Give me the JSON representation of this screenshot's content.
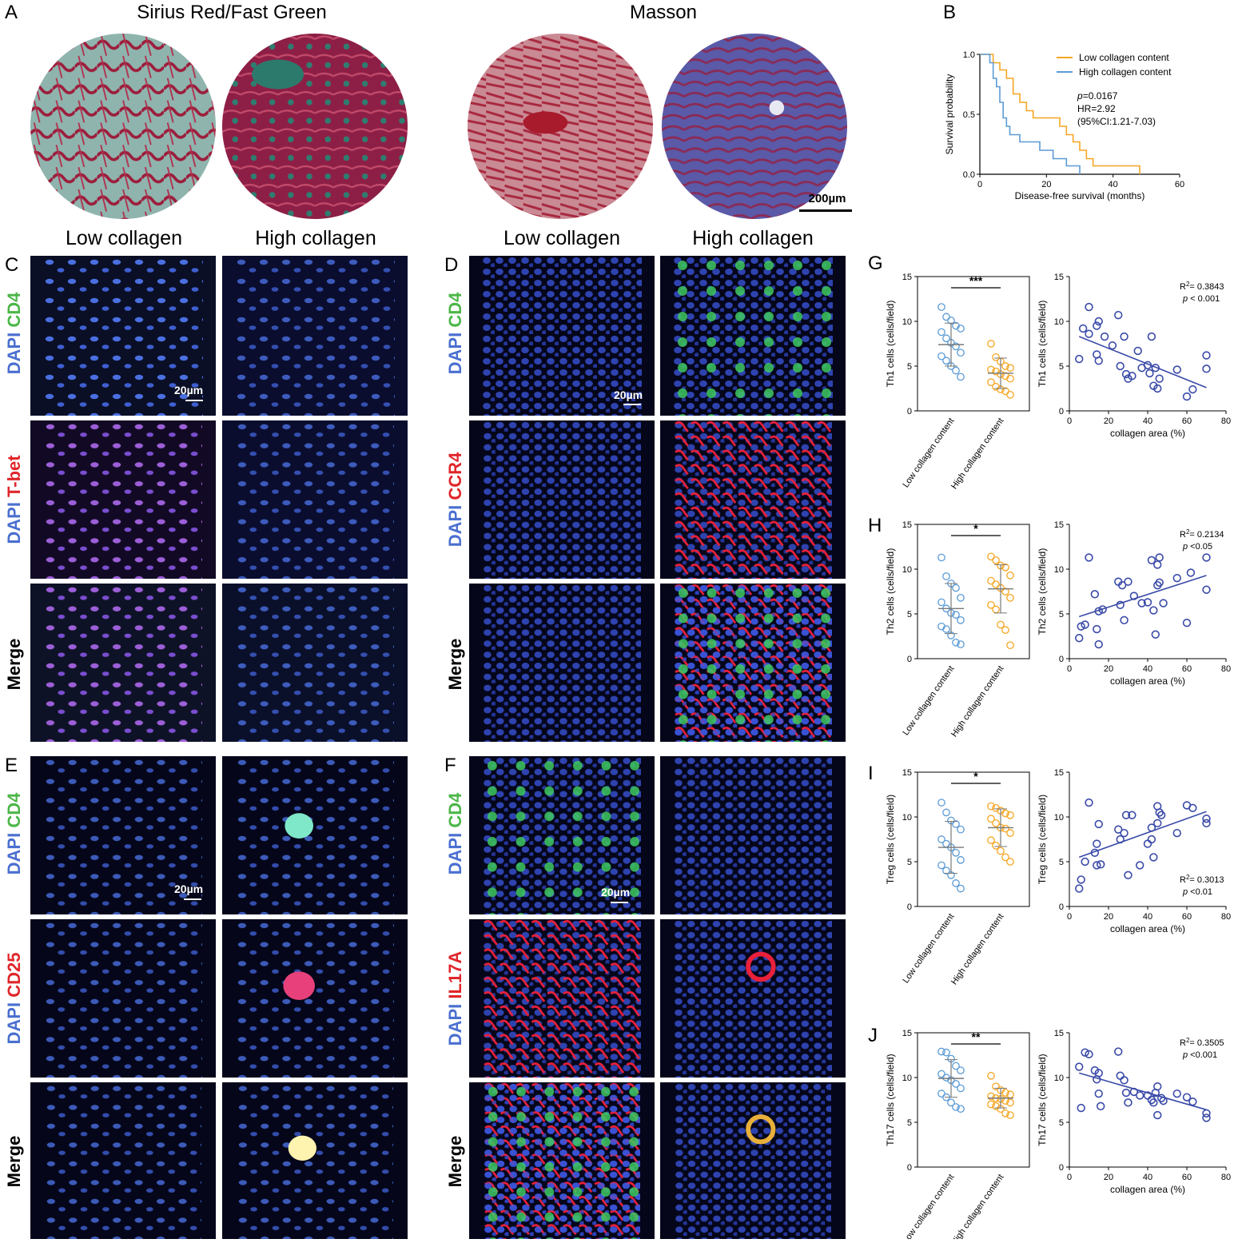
{
  "panels": {
    "A": {
      "letter": "A",
      "title_left": "Sirius Red/Fast Green",
      "title_right": "Masson",
      "scale": "200µm"
    },
    "B": {
      "letter": "B"
    },
    "C": {
      "letter": "C",
      "col_low": "Low collagen",
      "col_high": "High collagen",
      "scale": "20µm",
      "rows": [
        {
          "dapi": "DAPI",
          "marker": "CD4"
        },
        {
          "dapi": "DAPI",
          "marker": "T-bet"
        },
        {
          "merge": "Merge"
        }
      ]
    },
    "D": {
      "letter": "D",
      "col_low": "Low collagen",
      "col_high": "High collagen",
      "scale": "20µm",
      "rows": [
        {
          "dapi": "DAPI",
          "marker": "CD4"
        },
        {
          "dapi": "DAPI",
          "marker": "CCR4"
        },
        {
          "merge": "Merge"
        }
      ]
    },
    "E": {
      "letter": "E",
      "scale": "20µm",
      "rows": [
        {
          "dapi": "DAPI",
          "marker": "CD4"
        },
        {
          "dapi": "DAPI",
          "marker": "CD25"
        },
        {
          "merge": "Merge"
        }
      ]
    },
    "F": {
      "letter": "F",
      "scale": "20µm",
      "rows": [
        {
          "dapi": "DAPI",
          "marker": "CD4"
        },
        {
          "dapi": "DAPI",
          "marker": "IL17A"
        },
        {
          "merge": "Merge"
        }
      ]
    },
    "G": {
      "letter": "G"
    },
    "H": {
      "letter": "H"
    },
    "I": {
      "letter": "I"
    },
    "J": {
      "letter": "J"
    }
  },
  "colors": {
    "low": "#f5a623",
    "high": "#5b9bd5",
    "scatter": "#3a4aa8"
  },
  "chart_data": [
    {
      "id": "B",
      "type": "line",
      "xlabel": "Disease-free survival (months)",
      "ylabel": "Survival probability",
      "xlim": [
        0,
        60
      ],
      "ylim": [
        0,
        1.0
      ],
      "xticks": [
        0,
        20,
        40,
        60
      ],
      "yticks": [
        0.0,
        0.5,
        1.0
      ],
      "legend": [
        "Low collagen content",
        "High collagen content"
      ],
      "annotations": [
        "p=0.0167",
        "HR=2.92",
        "(95%CI:1.21-7.03)"
      ],
      "series": [
        {
          "name": "Low collagen content",
          "color": "#f5a623",
          "steps": [
            [
              0,
              1.0
            ],
            [
              4,
              0.93
            ],
            [
              6,
              0.87
            ],
            [
              8,
              0.8
            ],
            [
              10,
              0.67
            ],
            [
              12,
              0.6
            ],
            [
              14,
              0.53
            ],
            [
              16,
              0.47
            ],
            [
              24,
              0.4
            ],
            [
              26,
              0.33
            ],
            [
              28,
              0.27
            ],
            [
              30,
              0.2
            ],
            [
              32,
              0.13
            ],
            [
              34,
              0.07
            ],
            [
              48,
              0.0
            ]
          ]
        },
        {
          "name": "High collagen content",
          "color": "#5b9bd5",
          "steps": [
            [
              0,
              1.0
            ],
            [
              3,
              0.93
            ],
            [
              4,
              0.8
            ],
            [
              5,
              0.73
            ],
            [
              6,
              0.6
            ],
            [
              7,
              0.47
            ],
            [
              8,
              0.4
            ],
            [
              9,
              0.33
            ],
            [
              12,
              0.27
            ],
            [
              18,
              0.2
            ],
            [
              22,
              0.13
            ],
            [
              26,
              0.07
            ],
            [
              30,
              0.0
            ]
          ]
        }
      ]
    },
    {
      "id": "G",
      "type": "scatter",
      "ylabel": "Th1 cells (cells/field)",
      "ylim": [
        0,
        15
      ],
      "yticks": [
        0,
        5,
        10,
        15
      ],
      "categories": [
        "Low collagen content",
        "High collagen content"
      ],
      "significance": "***",
      "groups": [
        {
          "name": "Low collagen content",
          "mean": 7.4,
          "sd": 2.4,
          "values": [
            11.6,
            10.5,
            10.1,
            9.5,
            9.2,
            8.8,
            8.1,
            7.6,
            7.2,
            6.5,
            6.1,
            5.6,
            5.0,
            4.5,
            3.8
          ]
        },
        {
          "name": "High collagen content",
          "mean": 4.2,
          "sd": 1.7,
          "values": [
            7.5,
            6.0,
            5.5,
            5.0,
            4.8,
            4.6,
            4.4,
            4.1,
            3.9,
            3.6,
            3.2,
            2.7,
            2.4,
            2.2,
            1.8
          ]
        }
      ],
      "regression": {
        "xlabel": "collagen area (%)",
        "ylabel": "Th1 cells (cells/field)",
        "xlim": [
          0,
          80
        ],
        "xticks": [
          0,
          20,
          40,
          60,
          80
        ],
        "r2": "0.3843",
        "p": "< 0.001",
        "r2_label": "R",
        "p_label": "p",
        "points": [
          [
            5,
            5.8
          ],
          [
            7,
            9.2
          ],
          [
            10,
            11.6
          ],
          [
            10,
            8.6
          ],
          [
            14,
            6.3
          ],
          [
            14,
            9.5
          ],
          [
            15,
            5.6
          ],
          [
            15,
            10
          ],
          [
            18,
            8.3
          ],
          [
            22,
            7.3
          ],
          [
            25,
            10.7
          ],
          [
            26,
            5.0
          ],
          [
            28,
            8.3
          ],
          [
            29,
            4.1
          ],
          [
            30,
            3.6
          ],
          [
            32,
            3.9
          ],
          [
            35,
            6.7
          ],
          [
            37,
            4.8
          ],
          [
            40,
            5.1
          ],
          [
            41,
            4.2
          ],
          [
            42,
            8.3
          ],
          [
            43,
            2.8
          ],
          [
            44,
            4.8
          ],
          [
            45,
            2.5
          ],
          [
            46,
            3.6
          ],
          [
            55,
            4.6
          ],
          [
            60,
            1.6
          ],
          [
            63,
            2.4
          ],
          [
            70,
            6.2
          ],
          [
            70,
            4.7
          ]
        ],
        "line": [
          [
            5,
            8.3
          ],
          [
            70,
            2.6
          ]
        ]
      }
    },
    {
      "id": "H",
      "type": "scatter",
      "ylabel": "Th2 cells (cells/field)",
      "ylim": [
        0,
        15
      ],
      "yticks": [
        0,
        5,
        10,
        15
      ],
      "categories": [
        "Low collagen content",
        "High collagen content"
      ],
      "significance": "*",
      "groups": [
        {
          "name": "Low collagen content",
          "mean": 5.6,
          "sd": 2.8,
          "values": [
            11.3,
            9.2,
            8.4,
            7.9,
            6.8,
            6.3,
            5.6,
            5.1,
            4.9,
            4.3,
            3.6,
            3.3,
            2.6,
            1.8,
            1.6
          ]
        },
        {
          "name": "High collagen content",
          "mean": 7.8,
          "sd": 2.7,
          "values": [
            11.4,
            11.0,
            10.4,
            10.2,
            9.3,
            8.7,
            8.3,
            7.9,
            7.5,
            6.8,
            6.0,
            5.5,
            3.8,
            3.2,
            1.5
          ]
        }
      ],
      "regression": {
        "xlabel": "collagen area (%)",
        "ylabel": "Th2 cells (cells/field)",
        "xlim": [
          0,
          80
        ],
        "xticks": [
          0,
          20,
          40,
          60,
          80
        ],
        "r2": "0.2134",
        "p": "<0.05",
        "r2_label": "R",
        "p_label": "p",
        "points": [
          [
            5,
            2.3
          ],
          [
            6,
            3.6
          ],
          [
            8,
            3.8
          ],
          [
            10,
            11.3
          ],
          [
            13,
            7.2
          ],
          [
            14,
            3.3
          ],
          [
            15,
            5.3
          ],
          [
            15,
            1.6
          ],
          [
            17,
            5.5
          ],
          [
            25,
            8.6
          ],
          [
            26,
            6.0
          ],
          [
            27,
            8.2
          ],
          [
            28,
            4.3
          ],
          [
            30,
            8.6
          ],
          [
            33,
            7.0
          ],
          [
            37,
            6.2
          ],
          [
            40,
            6.3
          ],
          [
            42,
            11.0
          ],
          [
            43,
            5.4
          ],
          [
            44,
            2.7
          ],
          [
            45,
            8.2
          ],
          [
            45,
            10.5
          ],
          [
            46,
            11.3
          ],
          [
            46,
            8.5
          ],
          [
            48,
            6.2
          ],
          [
            55,
            9.0
          ],
          [
            60,
            4.0
          ],
          [
            62,
            9.6
          ],
          [
            70,
            11.3
          ],
          [
            70,
            7.7
          ]
        ],
        "line": [
          [
            5,
            4.7
          ],
          [
            70,
            9.3
          ]
        ]
      }
    },
    {
      "id": "I",
      "type": "scatter",
      "ylabel": "Treg cells (cells/field)",
      "ylim": [
        0,
        15
      ],
      "yticks": [
        0,
        5,
        10,
        15
      ],
      "categories": [
        "Low collagen content",
        "High collagen content"
      ],
      "significance": "*",
      "groups": [
        {
          "name": "Low collagen content",
          "mean": 6.6,
          "sd": 2.9,
          "values": [
            11.6,
            10.5,
            9.6,
            9.2,
            8.6,
            7.5,
            7.0,
            6.6,
            6.0,
            5.2,
            4.6,
            4.0,
            3.5,
            2.6,
            2.0
          ]
        },
        {
          "name": "High collagen content",
          "mean": 8.8,
          "sd": 2.1,
          "values": [
            11.2,
            11.0,
            10.7,
            10.4,
            10.2,
            9.8,
            9.3,
            8.8,
            8.7,
            8.2,
            7.4,
            6.8,
            6.2,
            5.5,
            5.0
          ]
        }
      ],
      "regression": {
        "xlabel": "collagen area (%)",
        "ylabel": "Treg cells (cells/field)",
        "xlim": [
          0,
          80
        ],
        "xticks": [
          0,
          20,
          40,
          60,
          80
        ],
        "r2": "0.3013",
        "p": "<0.01",
        "r2_label": "R",
        "p_label": "p",
        "points": [
          [
            5,
            2.0
          ],
          [
            6,
            3.0
          ],
          [
            8,
            5.0
          ],
          [
            10,
            11.6
          ],
          [
            13,
            6.0
          ],
          [
            14,
            4.6
          ],
          [
            14,
            7.0
          ],
          [
            15,
            9.2
          ],
          [
            16,
            4.7
          ],
          [
            25,
            8.6
          ],
          [
            26,
            7.5
          ],
          [
            28,
            8.2
          ],
          [
            29,
            10.2
          ],
          [
            30,
            3.5
          ],
          [
            32,
            10.2
          ],
          [
            36,
            4.6
          ],
          [
            40,
            7.0
          ],
          [
            42,
            7.5
          ],
          [
            42,
            8.8
          ],
          [
            43,
            5.5
          ],
          [
            45,
            11.2
          ],
          [
            45,
            9.3
          ],
          [
            46,
            10.5
          ],
          [
            47,
            10.2
          ],
          [
            55,
            8.2
          ],
          [
            60,
            11.3
          ],
          [
            63,
            11.0
          ],
          [
            70,
            9.8
          ],
          [
            70,
            9.3
          ]
        ],
        "line": [
          [
            5,
            5.5
          ],
          [
            70,
            10.6
          ]
        ]
      }
    },
    {
      "id": "J",
      "type": "scatter",
      "ylabel": "Th17 cells (cells/field)",
      "ylim": [
        0,
        15
      ],
      "yticks": [
        0,
        5,
        10,
        15
      ],
      "categories": [
        "Low collagen content",
        "High collagen content"
      ],
      "significance": "**",
      "groups": [
        {
          "name": "Low collagen content",
          "mean": 9.9,
          "sd": 2.1,
          "values": [
            12.9,
            12.8,
            12.1,
            11.3,
            10.8,
            10.4,
            10.0,
            9.7,
            9.3,
            8.8,
            8.2,
            7.8,
            7.2,
            6.7,
            6.5
          ]
        },
        {
          "name": "High collagen content",
          "mean": 7.7,
          "sd": 1.1,
          "values": [
            10.2,
            9.0,
            8.6,
            8.3,
            8.1,
            7.9,
            7.7,
            7.6,
            7.4,
            7.2,
            7.0,
            6.8,
            6.5,
            6.0,
            5.8
          ]
        }
      ],
      "regression": {
        "xlabel": "collagen area (%)",
        "ylabel": "Th17 cells (cells/field)",
        "xlim": [
          0,
          80
        ],
        "xticks": [
          0,
          20,
          40,
          60,
          80
        ],
        "r2": "0.3505",
        "p": "<0.001",
        "r2_label": "R",
        "p_label": "p",
        "points": [
          [
            5,
            11.2
          ],
          [
            6,
            6.6
          ],
          [
            8,
            12.8
          ],
          [
            10,
            12.6
          ],
          [
            13,
            10.8
          ],
          [
            14,
            9.8
          ],
          [
            15,
            8.2
          ],
          [
            15,
            10.5
          ],
          [
            16,
            6.8
          ],
          [
            25,
            12.9
          ],
          [
            26,
            10.2
          ],
          [
            28,
            9.7
          ],
          [
            29,
            8.3
          ],
          [
            30,
            7.2
          ],
          [
            33,
            8.4
          ],
          [
            36,
            8.0
          ],
          [
            40,
            8.0
          ],
          [
            42,
            7.5
          ],
          [
            43,
            7.2
          ],
          [
            44,
            8.3
          ],
          [
            45,
            5.8
          ],
          [
            45,
            9.0
          ],
          [
            47,
            7.7
          ],
          [
            48,
            7.4
          ],
          [
            55,
            8.2
          ],
          [
            60,
            7.8
          ],
          [
            63,
            7.3
          ],
          [
            70,
            6.0
          ],
          [
            70,
            5.5
          ]
        ],
        "line": [
          [
            5,
            10.5
          ],
          [
            70,
            6.4
          ]
        ]
      }
    }
  ]
}
